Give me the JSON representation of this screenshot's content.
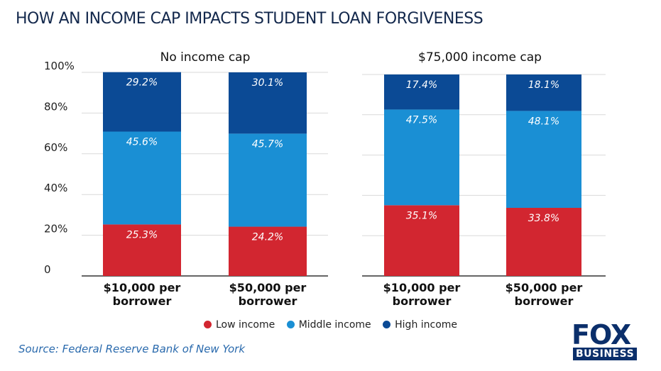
{
  "title": "HOW AN INCOME CAP IMPACTS STUDENT LOAN FORGIVENESS",
  "source": "Source:  Federal Reserve Bank of New York",
  "logo": {
    "text_top": "FOX",
    "text_bottom": "BUSINESS"
  },
  "colors": {
    "low": "#d22630",
    "middle": "#1a8fd4",
    "high": "#0b4a95",
    "grid": "#d9d9d9",
    "axis": "#333333"
  },
  "legend": [
    {
      "label": "Low income",
      "color": "#d22630"
    },
    {
      "label": "Middle income",
      "color": "#1a8fd4"
    },
    {
      "label": "High income",
      "color": "#0b4a95"
    }
  ],
  "chart_data": [
    {
      "type": "bar",
      "stacked": true,
      "title": "No income cap",
      "categories": [
        "$10,000 per borrower",
        "$50,000 per borrower"
      ],
      "category_lines": [
        [
          "$10,000 per",
          "borrower"
        ],
        [
          "$50,000 per",
          "borrower"
        ]
      ],
      "yticks": [
        "0",
        "20%",
        "40%",
        "60%",
        "80%",
        "100%"
      ],
      "ylim": [
        0,
        100
      ],
      "grid": true,
      "series": [
        {
          "name": "Low income",
          "values": [
            25.3,
            24.2
          ],
          "labels": [
            "25.3%",
            "24.2%"
          ]
        },
        {
          "name": "Middle income",
          "values": [
            45.6,
            45.7
          ],
          "labels": [
            "45.6%",
            "45.7%"
          ]
        },
        {
          "name": "High income",
          "values": [
            29.2,
            30.1
          ],
          "labels": [
            "29.2%",
            "30.1%"
          ]
        }
      ]
    },
    {
      "type": "bar",
      "stacked": true,
      "title": "$75,000 income cap",
      "categories": [
        "$10,000 per borrower",
        "$50,000 per borrower"
      ],
      "category_lines": [
        [
          "$10,000 per",
          "borrower"
        ],
        [
          "$50,000 per",
          "borrower"
        ]
      ],
      "ylim": [
        0,
        100
      ],
      "grid": true,
      "series": [
        {
          "name": "Low income",
          "values": [
            35.1,
            33.8
          ],
          "labels": [
            "35.1%",
            "33.8%"
          ]
        },
        {
          "name": "Middle income",
          "values": [
            47.5,
            48.1
          ],
          "labels": [
            "47.5%",
            "48.1%"
          ]
        },
        {
          "name": "High income",
          "values": [
            17.4,
            18.1
          ],
          "labels": [
            "17.4%",
            "18.1%"
          ]
        }
      ]
    }
  ]
}
